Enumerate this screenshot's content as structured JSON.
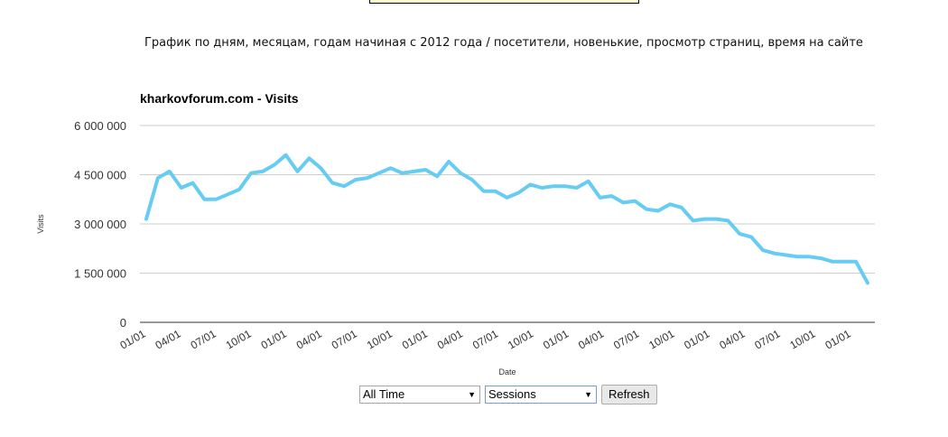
{
  "page": {
    "subtitle": "График по дням, месяцам, годам начиная с 2012 года / посетители, новенькие, просмотр страниц, время на сайте"
  },
  "controls": {
    "range_value": "All Time",
    "metric_value": "Sessions",
    "refresh_label": "Refresh"
  },
  "chart_data": {
    "type": "line",
    "title": "kharkovforum.com - Visits",
    "xlabel": "Date",
    "ylabel": "Visits",
    "ylim": [
      0,
      6000000
    ],
    "yticks": [
      0,
      1500000,
      3000000,
      4500000,
      6000000
    ],
    "ytick_labels": [
      "0",
      "1 500 000",
      "3 000 000",
      "4 500 000",
      "6 000 000"
    ],
    "xtick_labels": [
      "01/01",
      "04/01",
      "07/01",
      "10/01",
      "01/01",
      "04/01",
      "07/01",
      "10/01",
      "01/01",
      "04/01",
      "07/01",
      "10/01",
      "01/01",
      "04/01",
      "07/01",
      "10/01",
      "01/01",
      "04/01",
      "07/01",
      "10/01",
      "01/01"
    ],
    "grid": true,
    "line_color": "#66ccf2",
    "series": [
      {
        "values": [
          3150000,
          4400000,
          4600000,
          4100000,
          4250000,
          3750000,
          3750000,
          3900000,
          4050000,
          4550000,
          4600000,
          4800000,
          5100000,
          4600000,
          5000000,
          4700000,
          4250000,
          4150000,
          4350000,
          4400000,
          4550000,
          4700000,
          4550000,
          4600000,
          4650000,
          4450000,
          4900000,
          4550000,
          4350000,
          4000000,
          4000000,
          3800000,
          3950000,
          4200000,
          4100000,
          4150000,
          4150000,
          4100000,
          4300000,
          3800000,
          3850000,
          3650000,
          3700000,
          3450000,
          3400000,
          3600000,
          3500000,
          3100000,
          3150000,
          3150000,
          3100000,
          2700000,
          2600000,
          2200000,
          2100000,
          2050000,
          2000000,
          2000000,
          1950000,
          1850000,
          1850000,
          1850000,
          1200000
        ]
      }
    ]
  }
}
